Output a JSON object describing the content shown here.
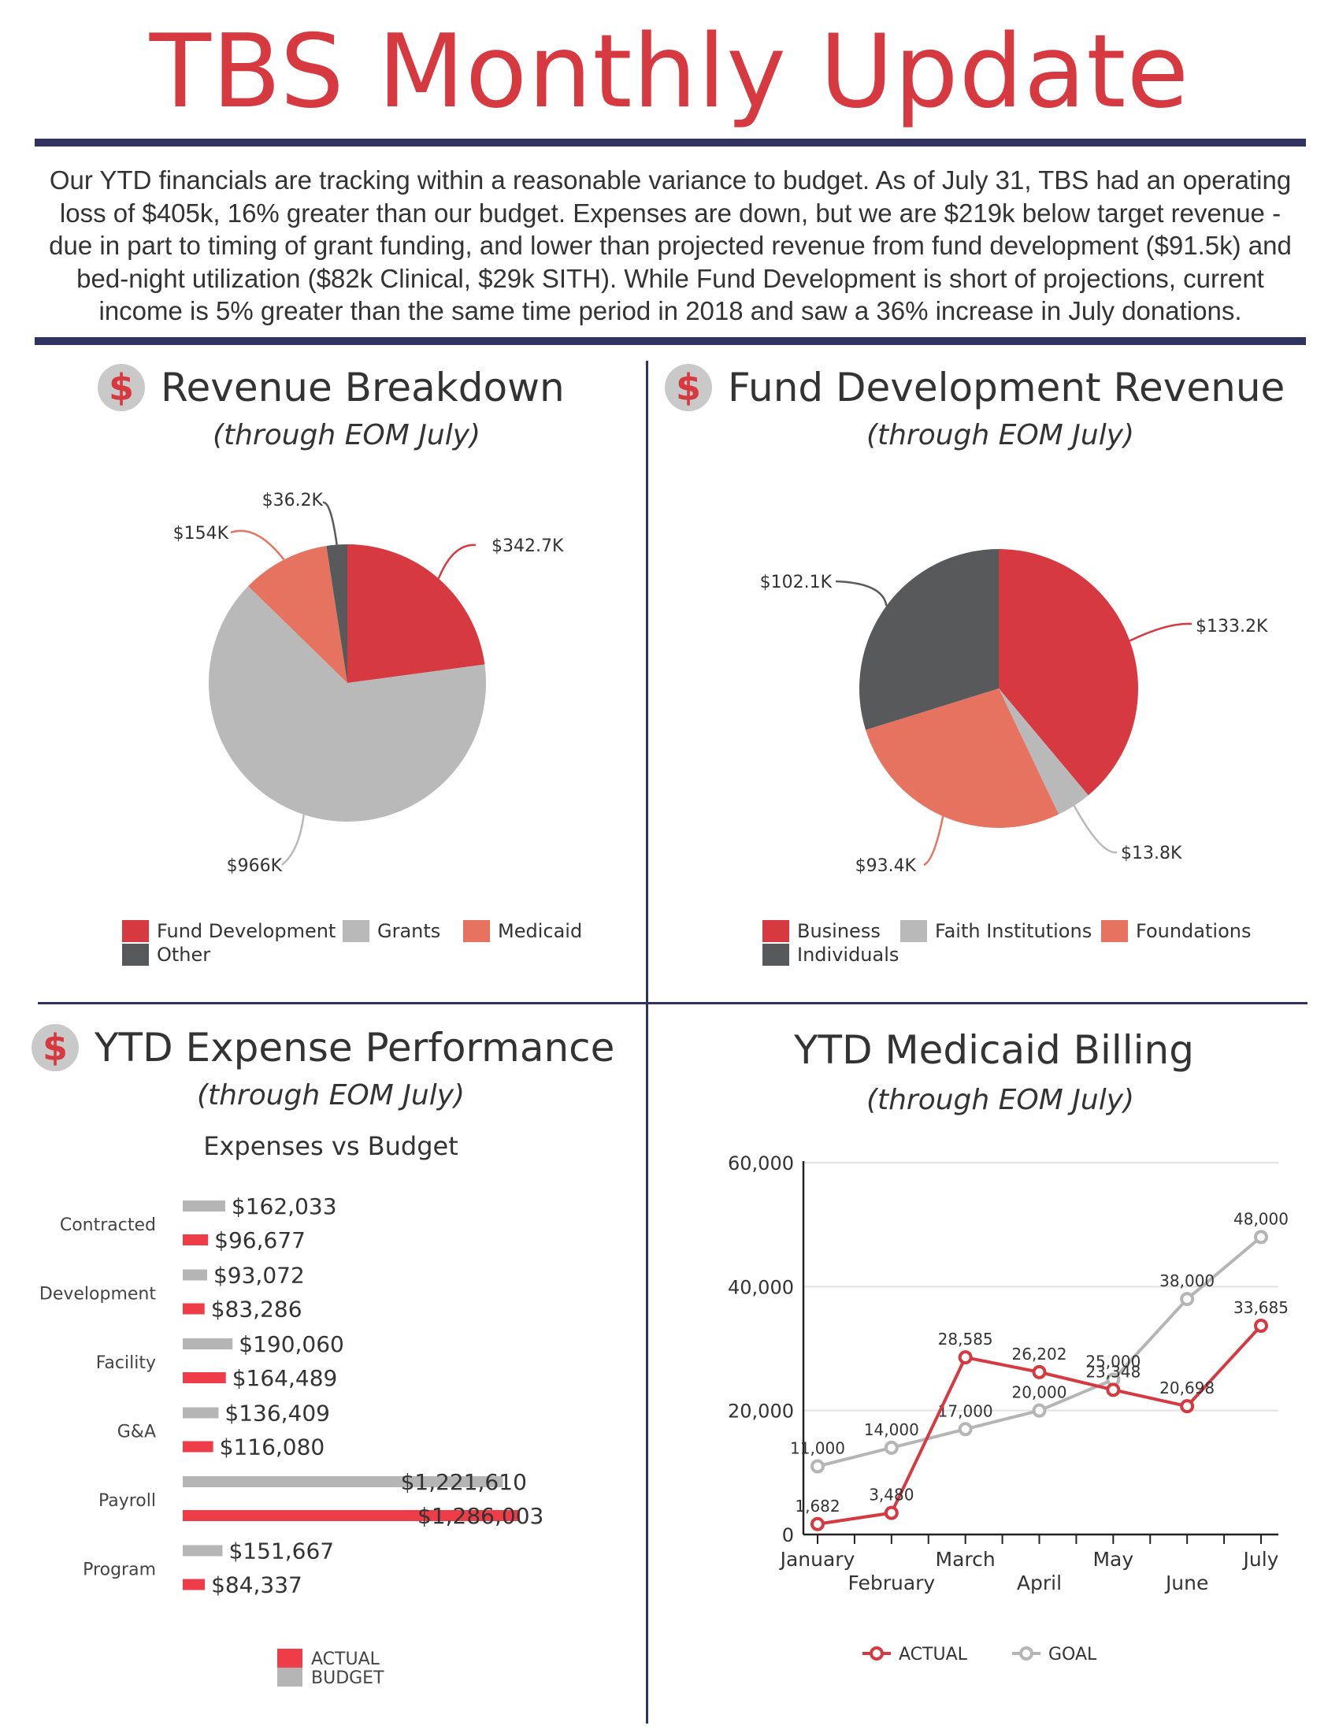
{
  "header": {
    "title": "TBS Monthly Update",
    "intro": "Our YTD financials are tracking within a reasonable variance to budget. As of July 31, TBS had an operating loss of $405k, 16% greater than our budget. Expenses are down, but we are $219k below target revenue - due in part to timing of grant funding, and lower than projected revenue from fund development ($91.5k) and bed-night utilization ($82k Clinical, $29k SITH). While Fund Development is short of projections, current income is 5% greater than the same time period in 2018 and saw a 36% increase in July donations."
  },
  "colors": {
    "red": "#d63a40",
    "gray": "#b9b9b9",
    "salmon": "#e5735f",
    "dark": "#58595b",
    "navy": "#303260",
    "bar_red": "#ee3d48",
    "bar_gray": "#b5b5b5"
  },
  "revenue": {
    "icon": "dollar-icon",
    "title": "Revenue Breakdown",
    "subtitle": "(through EOM July)"
  },
  "fund_dev": {
    "icon": "dollar-icon",
    "title": "Fund Development Revenue",
    "subtitle": "(through EOM July)"
  },
  "expense": {
    "icon": "dollar-icon",
    "title": "YTD Expense Performance",
    "subtitle": "(through EOM July)",
    "chart_title": "Expenses vs Budget"
  },
  "medicaid": {
    "title": "YTD Medicaid Billing",
    "subtitle": "(through EOM July)"
  },
  "chart_data": [
    {
      "type": "pie",
      "id": "revenue-breakdown",
      "labels": [
        "Fund Development",
        "Grants",
        "Medicaid",
        "Other"
      ],
      "values": [
        342.7,
        966,
        154,
        36.2
      ],
      "value_labels": [
        "$342.7K",
        "$966K",
        "$154K",
        "$36.2K"
      ],
      "colors": [
        "#d63a40",
        "#b9b9b9",
        "#e5735f",
        "#58595b"
      ],
      "legend": "bottom"
    },
    {
      "type": "pie",
      "id": "fund-development-revenue",
      "labels": [
        "Business",
        "Faith Institutions",
        "Foundations",
        "Individuals"
      ],
      "values": [
        133.2,
        13.8,
        93.4,
        102.1
      ],
      "value_labels": [
        "$133.2K",
        "$13.8K",
        "$93.4K",
        "$102.1K"
      ],
      "colors": [
        "#d63a40",
        "#b9b9b9",
        "#e5735f",
        "#58595b"
      ],
      "legend": "bottom"
    },
    {
      "type": "bar",
      "id": "expenses-vs-budget",
      "orientation": "horizontal",
      "title": "Expenses vs Budget",
      "categories": [
        "Contracted",
        "Development",
        "Facility",
        "G&A",
        "Payroll",
        "Program"
      ],
      "category_labels": [
        "Contracted",
        "Development",
        "Facility",
        "G&A",
        "Payroll",
        "Program"
      ],
      "series": [
        {
          "name": "BUDGET",
          "values": [
            162033,
            93072,
            190060,
            136409,
            1221610,
            151667
          ],
          "labels": [
            "$162,033",
            "$93,072",
            "$190,060",
            "$136,409",
            "$1,221,610",
            "$151,667"
          ],
          "color": "#b5b5b5"
        },
        {
          "name": "ACTUAL",
          "values": [
            96677,
            83286,
            164489,
            116080,
            1286003,
            84337
          ],
          "labels": [
            "$96,677",
            "$83,286",
            "$164,489",
            "$116,080",
            "$1,286,003",
            "$84,337"
          ],
          "color": "#ee3d48"
        }
      ],
      "xlim": [
        0,
        1330000
      ],
      "legend": "bottom",
      "legend_order": [
        "ACTUAL",
        "BUDGET"
      ]
    },
    {
      "type": "line",
      "id": "medicaid-billing",
      "categories": [
        "January",
        "February",
        "March",
        "April",
        "May",
        "June",
        "July"
      ],
      "series": [
        {
          "name": "ACTUAL",
          "values": [
            1682,
            3480,
            28585,
            26202,
            23348,
            20698,
            33685
          ],
          "labels": [
            "1,682",
            "3,480",
            "28,585",
            "26,202",
            "23,348",
            "20,698",
            "33,685"
          ],
          "color": "#d63a40"
        },
        {
          "name": "GOAL",
          "values": [
            11000,
            14000,
            17000,
            20000,
            25000,
            38000,
            48000
          ],
          "labels": [
            "11,000",
            "14,000",
            "17,000",
            "20,000",
            "25,000",
            "38,000",
            "48,000"
          ],
          "color": "#b5b5b5"
        }
      ],
      "ylim": [
        0,
        60000
      ],
      "yticks": [
        "0",
        "20,000",
        "40,000",
        "60,000"
      ],
      "grid": true,
      "legend": "bottom"
    }
  ]
}
